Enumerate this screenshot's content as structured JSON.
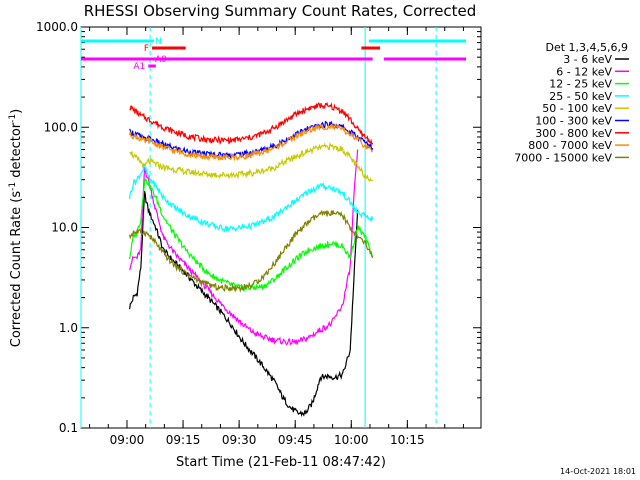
{
  "chart_data": {
    "type": "line",
    "title": "RHESSI Observing Summary Count Rates, Corrected",
    "xlabel": "Start Time (21-Feb-11 08:47:42)",
    "ylabel_main": "Corrected Count Rate (s",
    "ylabel_sup1": "-1",
    "ylabel_mid": " detector",
    "ylabel_sup2": "-1",
    "ylabel_end": ")",
    "yscale": "log",
    "ylim": [
      0.1,
      1000
    ],
    "xlim_minutes": [
      0,
      107
    ],
    "x_ticks": [
      {
        "label": "09:00",
        "minute": 12.3
      },
      {
        "label": "09:15",
        "minute": 27.3
      },
      {
        "label": "09:30",
        "minute": 42.3
      },
      {
        "label": "09:45",
        "minute": 57.3
      },
      {
        "label": "10:00",
        "minute": 72.3
      },
      {
        "label": "10:15",
        "minute": 87.3
      }
    ],
    "y_ticks": [
      {
        "label": "0.1",
        "value": 0.1
      },
      {
        "label": "1.0",
        "value": 1
      },
      {
        "label": "10.0",
        "value": 10
      },
      {
        "label": "100.0",
        "value": 100
      },
      {
        "label": "1000.0",
        "value": 1000
      }
    ],
    "legend_title": "Det 1,3,4,5,6,9",
    "legend_placement": "top-right outside",
    "series": [
      {
        "name": "3 - 6 keV",
        "color": "#000000",
        "x": [
          13,
          14,
          15,
          16,
          17,
          18,
          20,
          22,
          25,
          28,
          31,
          34,
          37,
          40,
          43,
          46,
          49,
          52,
          54,
          56,
          58,
          60,
          62,
          64,
          66,
          68,
          70,
          72,
          73,
          74
        ],
        "y": [
          1.6,
          2,
          2.2,
          4,
          22,
          15,
          10,
          6,
          4.5,
          3.5,
          2.6,
          2.0,
          1.5,
          1.1,
          0.75,
          0.55,
          0.4,
          0.28,
          0.2,
          0.16,
          0.14,
          0.14,
          0.18,
          0.32,
          0.33,
          0.32,
          0.34,
          0.6,
          3,
          15
        ]
      },
      {
        "name": "6 - 12 keV",
        "color": "#ff00ff",
        "x": [
          13,
          14,
          15,
          16,
          17,
          18,
          20,
          22,
          25,
          28,
          31,
          34,
          37,
          40,
          43,
          46,
          49,
          52,
          55,
          58,
          61,
          64,
          67,
          70,
          72,
          73,
          74
        ],
        "y": [
          4,
          5,
          5,
          6,
          40,
          30,
          15,
          8,
          5.5,
          4.2,
          3.2,
          2.4,
          1.8,
          1.4,
          1.1,
          0.9,
          0.8,
          0.75,
          0.72,
          0.72,
          0.8,
          0.95,
          1.1,
          1.7,
          4,
          20,
          60
        ]
      },
      {
        "name": "12 - 25 keV",
        "color": "#00ff00",
        "x": [
          13,
          14,
          15,
          16,
          17,
          18,
          20,
          22,
          25,
          28,
          31,
          34,
          37,
          40,
          43,
          46,
          49,
          52,
          55,
          58,
          61,
          64,
          67,
          70,
          72,
          74,
          76,
          78
        ],
        "y": [
          5,
          8,
          9,
          12,
          30,
          28,
          20,
          13,
          8.5,
          6,
          4.5,
          3.5,
          3,
          2.7,
          2.5,
          2.5,
          2.6,
          3.1,
          4,
          5,
          6,
          6.5,
          7,
          6.5,
          5,
          10,
          8,
          5
        ]
      },
      {
        "name": "25 - 50 keV",
        "color": "#00ffff",
        "x": [
          13,
          14,
          15,
          16,
          17,
          18,
          20,
          22,
          25,
          28,
          31,
          34,
          37,
          40,
          43,
          46,
          49,
          52,
          55,
          58,
          61,
          64,
          67,
          70,
          72,
          74,
          76,
          78
        ],
        "y": [
          20,
          28,
          30,
          35,
          40,
          32,
          26,
          20,
          16,
          13.5,
          12,
          10.8,
          10,
          9.7,
          10,
          10.5,
          11.5,
          13,
          16,
          19,
          23,
          26,
          25,
          22,
          18,
          14,
          13,
          12
        ]
      },
      {
        "name": "50 - 100 keV",
        "color": "#c8c800",
        "x": [
          13,
          14,
          15,
          16,
          17,
          18,
          20,
          22,
          25,
          28,
          31,
          34,
          37,
          40,
          43,
          46,
          49,
          52,
          55,
          58,
          61,
          64,
          67,
          70,
          72,
          74,
          76,
          78
        ],
        "y": [
          60,
          52,
          48,
          45,
          40,
          46,
          43,
          40,
          38,
          36,
          35,
          34,
          33.5,
          33.5,
          34,
          35,
          37,
          40,
          46,
          52,
          58,
          63,
          64,
          60,
          50,
          40,
          33,
          30
        ]
      },
      {
        "name": "100 - 300 keV",
        "color": "#0000ff",
        "x": [
          13,
          14,
          15,
          16,
          17,
          18,
          20,
          22,
          25,
          28,
          31,
          34,
          37,
          40,
          43,
          46,
          49,
          52,
          55,
          58,
          61,
          64,
          67,
          70,
          72,
          74,
          76,
          78
        ],
        "y": [
          90,
          88,
          85,
          80,
          75,
          78,
          72,
          67,
          62,
          58,
          55,
          54,
          53,
          53,
          54,
          56,
          60,
          66,
          75,
          87,
          97,
          105,
          108,
          100,
          90,
          80,
          70,
          62
        ]
      },
      {
        "name": "300 - 800 keV",
        "color": "#ff0000",
        "x": [
          13,
          14,
          15,
          16,
          17,
          18,
          20,
          22,
          25,
          28,
          31,
          34,
          37,
          40,
          43,
          46,
          49,
          52,
          55,
          58,
          61,
          64,
          67,
          70,
          72,
          74,
          76,
          78
        ],
        "y": [
          160,
          150,
          140,
          130,
          125,
          120,
          110,
          100,
          90,
          83,
          78,
          75,
          74,
          74,
          76,
          80,
          88,
          100,
          118,
          138,
          155,
          165,
          160,
          145,
          120,
          95,
          80,
          70
        ]
      },
      {
        "name": "800 - 7000 keV",
        "color": "#ff8c00",
        "x": [
          13,
          14,
          15,
          16,
          17,
          18,
          20,
          22,
          25,
          28,
          31,
          34,
          37,
          40,
          43,
          46,
          49,
          52,
          55,
          58,
          61,
          64,
          67,
          70,
          72,
          74,
          76,
          78
        ],
        "y": [
          85,
          82,
          80,
          76,
          72,
          74,
          68,
          63,
          58,
          55,
          52,
          50.5,
          50,
          50,
          51,
          53,
          57,
          63,
          72,
          83,
          93,
          100,
          102,
          95,
          85,
          75,
          65,
          57
        ]
      },
      {
        "name": "7000 - 15000 keV",
        "color": "#808000",
        "x": [
          13,
          14,
          15,
          16,
          17,
          18,
          20,
          22,
          25,
          28,
          31,
          34,
          37,
          40,
          43,
          46,
          49,
          52,
          55,
          58,
          61,
          64,
          67,
          70,
          72,
          74,
          76,
          78
        ],
        "y": [
          8,
          9,
          9,
          9,
          9,
          8.5,
          7,
          5.5,
          4.2,
          3.5,
          3,
          2.7,
          2.5,
          2.5,
          2.5,
          2.7,
          3.3,
          4.5,
          6.5,
          9,
          11.5,
          13.5,
          14,
          13,
          10,
          8,
          7,
          5
        ]
      }
    ],
    "vertical_lines": [
      {
        "minute": 0,
        "style": "solid",
        "color": "#00ffff"
      },
      {
        "minute": 18.5,
        "style": "dashed",
        "color": "#00ffff"
      },
      {
        "minute": 76,
        "style": "solid",
        "color": "#00ffff"
      },
      {
        "minute": 95,
        "style": "dashed",
        "color": "#00ffff"
      }
    ],
    "flag_bars": [
      {
        "label": "N",
        "color": "#00ffff",
        "segments": [
          [
            0,
            19.5
          ],
          [
            77,
            103
          ]
        ],
        "level": 1
      },
      {
        "label": "F",
        "color": "#ff0000",
        "segments": [
          [
            19,
            28
          ],
          [
            75,
            80
          ]
        ],
        "level": 2
      },
      {
        "label": "A0",
        "color": "#ff00ff",
        "segments": [
          [
            0,
            78
          ],
          [
            81,
            103
          ]
        ],
        "level": 3
      },
      {
        "label": "A1",
        "color": "#ff00ff",
        "segments": [
          [
            18,
            20
          ]
        ],
        "level": 4
      }
    ],
    "timestamp": "14-Oct-2021 18:01"
  }
}
